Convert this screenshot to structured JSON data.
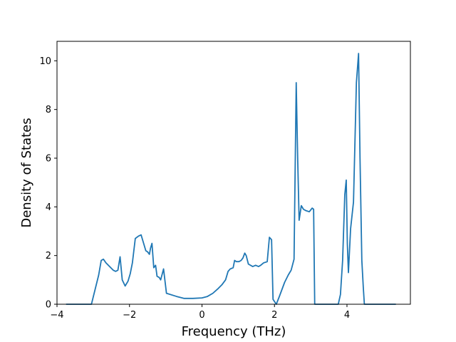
{
  "chart_data": {
    "type": "line",
    "title": "",
    "xlabel": "Frequency (THz)",
    "ylabel": "Density of States",
    "xlim": [
      -4.0,
      5.75
    ],
    "ylim": [
      0,
      10.8
    ],
    "xticks": [
      -4,
      -2,
      0,
      2,
      4
    ],
    "xtick_labels": [
      "−4",
      "−2",
      "0",
      "2",
      "4"
    ],
    "yticks": [
      0,
      2,
      4,
      6,
      8,
      10
    ],
    "ytick_labels": [
      "0",
      "2",
      "4",
      "6",
      "8",
      "10"
    ],
    "grid": false,
    "legend": "none",
    "series": [
      {
        "color": "#1f77b4",
        "x": [
          -3.75,
          -3.05,
          -2.95,
          -2.85,
          -2.78,
          -2.72,
          -2.65,
          -2.55,
          -2.45,
          -2.38,
          -2.32,
          -2.26,
          -2.2,
          -2.12,
          -2.04,
          -1.98,
          -1.92,
          -1.84,
          -1.75,
          -1.68,
          -1.6,
          -1.55,
          -1.5,
          -1.45,
          -1.42,
          -1.38,
          -1.33,
          -1.28,
          -1.24,
          -1.18,
          -1.14,
          -1.06,
          -0.98,
          -0.7,
          -0.5,
          -0.25,
          0.0,
          0.15,
          0.3,
          0.45,
          0.55,
          0.65,
          0.72,
          0.78,
          0.86,
          0.9,
          0.95,
          1.02,
          1.08,
          1.13,
          1.18,
          1.22,
          1.28,
          1.4,
          1.48,
          1.56,
          1.62,
          1.7,
          1.8,
          1.86,
          1.92,
          1.96,
          2.05,
          2.13,
          2.28,
          2.38,
          2.46,
          2.54,
          2.6,
          2.64,
          2.68,
          2.74,
          2.8,
          2.86,
          2.96,
          3.04,
          3.08,
          3.11,
          3.18,
          3.55,
          3.76,
          3.82,
          3.88,
          3.94,
          3.98,
          4.01,
          4.04,
          4.07,
          4.1,
          4.18,
          4.26,
          4.32,
          4.36,
          4.41,
          4.45,
          4.48,
          4.52,
          4.56,
          4.6,
          4.68,
          5.35
        ],
        "y": [
          0.0,
          0.0,
          0.6,
          1.2,
          1.8,
          1.85,
          1.7,
          1.55,
          1.4,
          1.35,
          1.4,
          1.95,
          1.0,
          0.75,
          0.95,
          1.25,
          1.7,
          2.7,
          2.8,
          2.85,
          2.45,
          2.2,
          2.15,
          2.05,
          2.3,
          2.5,
          1.5,
          1.6,
          1.15,
          1.1,
          1.0,
          1.45,
          0.45,
          0.32,
          0.24,
          0.24,
          0.26,
          0.32,
          0.45,
          0.65,
          0.8,
          1.0,
          1.35,
          1.45,
          1.5,
          1.8,
          1.75,
          1.75,
          1.8,
          1.9,
          2.1,
          2.0,
          1.65,
          1.55,
          1.6,
          1.55,
          1.6,
          1.7,
          1.75,
          2.75,
          2.65,
          0.2,
          0.0,
          0.3,
          0.9,
          1.2,
          1.4,
          1.85,
          9.1,
          6.0,
          3.45,
          4.05,
          3.9,
          3.85,
          3.8,
          3.95,
          3.9,
          0.0,
          0.0,
          0.0,
          0.0,
          0.4,
          1.8,
          4.5,
          5.1,
          2.5,
          1.3,
          2.2,
          3.1,
          4.2,
          9.1,
          10.3,
          6.0,
          1.8,
          0.7,
          0.0,
          0.0,
          0.0,
          0.0,
          0.0,
          0.0
        ]
      }
    ]
  }
}
